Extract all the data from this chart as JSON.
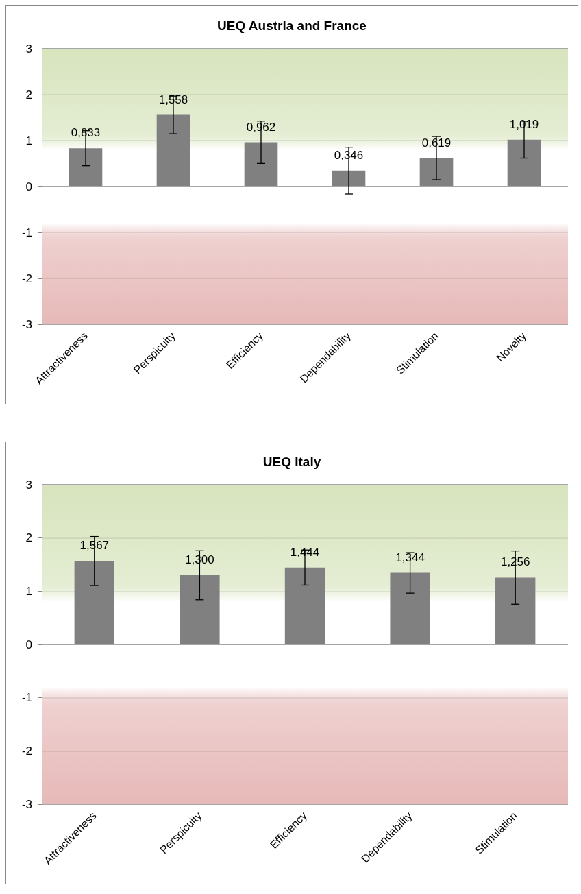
{
  "chart_data": [
    {
      "type": "bar",
      "title": "UEQ Austria and France",
      "categories": [
        "Attractiveness",
        "Perspicuity",
        "Efficiency",
        "Dependability",
        "Stimulation",
        "Novelty"
      ],
      "values": [
        0.833,
        1.558,
        0.962,
        0.346,
        0.619,
        1.019
      ],
      "color": "#808080",
      "errors": [
        0.38,
        0.41,
        0.46,
        0.51,
        0.47,
        0.4
      ],
      "value_labels": [
        "0,833",
        "1,558",
        "0,962",
        "0,346",
        "0,619",
        "1,019"
      ],
      "ylim": [
        -3,
        3
      ],
      "yticks": [
        -3,
        -2,
        -1,
        0,
        1,
        2,
        3
      ],
      "grid": "y",
      "bands": [
        {
          "axis": "y",
          "from": 0.8,
          "to": 3,
          "color": "#d7e4bd"
        },
        {
          "axis": "y",
          "from": -3,
          "to": -0.8,
          "color": "#e6b9b8"
        }
      ]
    },
    {
      "type": "bar",
      "title": "UEQ Italy",
      "categories": [
        "Attractiveness",
        "Perspicuity",
        "Efficiency",
        "Dependability",
        "Stimulation"
      ],
      "values": [
        1.567,
        1.3,
        1.444,
        1.344,
        1.256
      ],
      "color": "#808080",
      "errors": [
        0.46,
        0.46,
        0.33,
        0.38,
        0.5
      ],
      "value_labels": [
        "1,567",
        "1,300",
        "1,444",
        "1,344",
        "1,256"
      ],
      "ylim": [
        -3,
        3
      ],
      "yticks": [
        -3,
        -2,
        -1,
        0,
        1,
        2,
        3
      ],
      "grid": "y",
      "bands": [
        {
          "axis": "y",
          "from": 0.8,
          "to": 3,
          "color": "#d7e4bd"
        },
        {
          "axis": "y",
          "from": -3,
          "to": -0.8,
          "color": "#e6b9b8"
        }
      ]
    }
  ]
}
